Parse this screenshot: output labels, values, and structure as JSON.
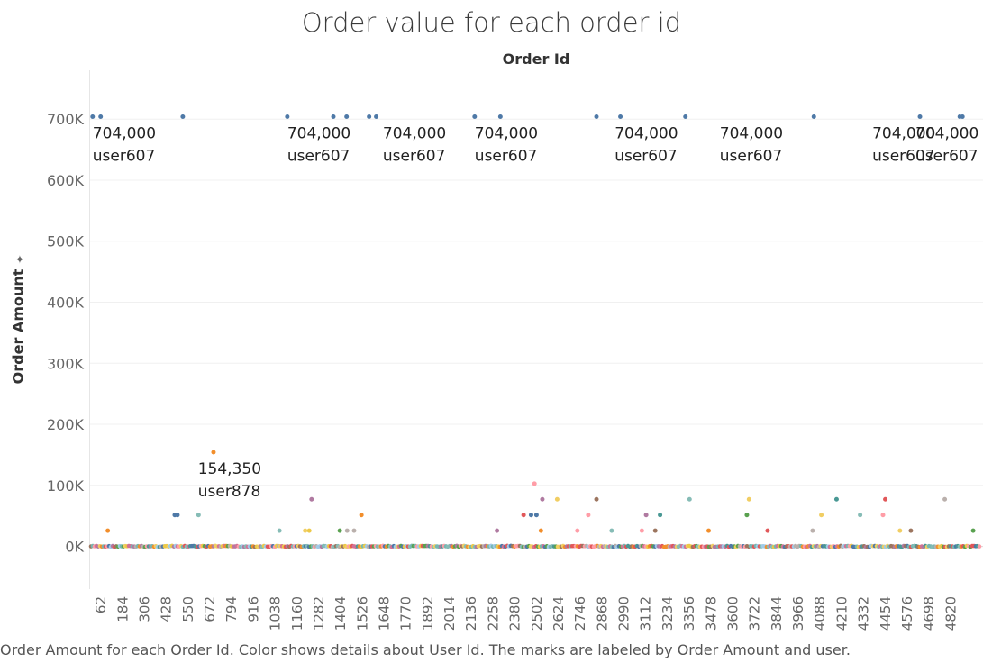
{
  "chart_data": {
    "type": "scatter",
    "title": "Order value for each order id",
    "xlabel": "Order Id",
    "ylabel": "Order Amount",
    "caption": "Order Amount for each Order Id.  Color shows details about User Id.  The marks are labeled by Order Amount and user.",
    "xlim": [
      1,
      5000
    ],
    "ylim": [
      -70000,
      780000
    ],
    "y_ticks": [
      0,
      100000,
      200000,
      300000,
      400000,
      500000,
      600000,
      700000
    ],
    "y_tick_labels": [
      "0K",
      "100K",
      "200K",
      "300K",
      "400K",
      "500K",
      "600K",
      "700K"
    ],
    "x_ticks": [
      62,
      184,
      306,
      428,
      550,
      672,
      794,
      916,
      1038,
      1160,
      1282,
      1404,
      1526,
      1648,
      1770,
      1892,
      2014,
      2136,
      2258,
      2380,
      2502,
      2624,
      2746,
      2868,
      2990,
      3112,
      3234,
      3356,
      3478,
      3600,
      3722,
      3844,
      3966,
      4088,
      4210,
      4332,
      4454,
      4576,
      4698,
      4820
    ],
    "grid": true,
    "points": [
      {
        "x": 15,
        "y": 704000,
        "color": "#4e79a7"
      },
      {
        "x": 60,
        "y": 704000,
        "color": "#4e79a7"
      },
      {
        "x": 520,
        "y": 704000,
        "color": "#4e79a7"
      },
      {
        "x": 1105,
        "y": 704000,
        "color": "#4e79a7"
      },
      {
        "x": 1363,
        "y": 704000,
        "color": "#4e79a7"
      },
      {
        "x": 1437,
        "y": 704000,
        "color": "#4e79a7"
      },
      {
        "x": 1563,
        "y": 704000,
        "color": "#4e79a7"
      },
      {
        "x": 1603,
        "y": 704000,
        "color": "#4e79a7"
      },
      {
        "x": 2154,
        "y": 704000,
        "color": "#4e79a7"
      },
      {
        "x": 2298,
        "y": 704000,
        "color": "#4e79a7"
      },
      {
        "x": 2836,
        "y": 704000,
        "color": "#4e79a7"
      },
      {
        "x": 2970,
        "y": 704000,
        "color": "#4e79a7"
      },
      {
        "x": 3334,
        "y": 704000,
        "color": "#4e79a7"
      },
      {
        "x": 4053,
        "y": 704000,
        "color": "#4e79a7"
      },
      {
        "x": 4647,
        "y": 704000,
        "color": "#4e79a7"
      },
      {
        "x": 4870,
        "y": 704000,
        "color": "#4e79a7"
      },
      {
        "x": 4885,
        "y": 704000,
        "color": "#4e79a7"
      },
      {
        "x": 692,
        "y": 154350,
        "color": "#f28e2b"
      },
      {
        "x": 2489,
        "y": 102900,
        "color": "#ff9da7"
      },
      {
        "x": 1241,
        "y": 77175,
        "color": "#b07aa1"
      },
      {
        "x": 2616,
        "y": 77175,
        "color": "#f1ce63"
      },
      {
        "x": 2836,
        "y": 77175,
        "color": "#9c755f"
      },
      {
        "x": 2533,
        "y": 77175,
        "color": "#b07aa1"
      },
      {
        "x": 3357,
        "y": 77175,
        "color": "#86bcb6"
      },
      {
        "x": 3690,
        "y": 77175,
        "color": "#f1ce63"
      },
      {
        "x": 4180,
        "y": 77175,
        "color": "#499894"
      },
      {
        "x": 4453,
        "y": 77175,
        "color": "#e15759"
      },
      {
        "x": 4786,
        "y": 77175,
        "color": "#bab0ac"
      },
      {
        "x": 475,
        "y": 51450,
        "color": "#4e79a7"
      },
      {
        "x": 490,
        "y": 51450,
        "color": "#4e79a7"
      },
      {
        "x": 608,
        "y": 51450,
        "color": "#86bcb6"
      },
      {
        "x": 1520,
        "y": 51450,
        "color": "#f28e2b"
      },
      {
        "x": 2428,
        "y": 51450,
        "color": "#e15759"
      },
      {
        "x": 2470,
        "y": 51450,
        "color": "#4e79a7"
      },
      {
        "x": 2500,
        "y": 51450,
        "color": "#4e79a7"
      },
      {
        "x": 2790,
        "y": 51450,
        "color": "#ff9da7"
      },
      {
        "x": 3114,
        "y": 51450,
        "color": "#b07aa1"
      },
      {
        "x": 3192,
        "y": 51450,
        "color": "#499894"
      },
      {
        "x": 3678,
        "y": 51450,
        "color": "#59a14f"
      },
      {
        "x": 4095,
        "y": 51450,
        "color": "#f1ce63"
      },
      {
        "x": 4312,
        "y": 51450,
        "color": "#86bcb6"
      },
      {
        "x": 4440,
        "y": 51450,
        "color": "#ff9da7"
      },
      {
        "x": 100,
        "y": 25725,
        "color": "#f28e2b"
      },
      {
        "x": 1061,
        "y": 25725,
        "color": "#86bcb6"
      },
      {
        "x": 1205,
        "y": 25725,
        "color": "#f1ce63"
      },
      {
        "x": 1228,
        "y": 25725,
        "color": "#edc948"
      },
      {
        "x": 1399,
        "y": 25725,
        "color": "#59a14f"
      },
      {
        "x": 1440,
        "y": 25725,
        "color": "#bab0ac"
      },
      {
        "x": 1479,
        "y": 25725,
        "color": "#bab0ac"
      },
      {
        "x": 2279,
        "y": 25725,
        "color": "#b07aa1"
      },
      {
        "x": 2525,
        "y": 25725,
        "color": "#f28e2b"
      },
      {
        "x": 2729,
        "y": 25725,
        "color": "#ff9da7"
      },
      {
        "x": 2921,
        "y": 25725,
        "color": "#86bcb6"
      },
      {
        "x": 3090,
        "y": 25725,
        "color": "#ff9da7"
      },
      {
        "x": 3165,
        "y": 25725,
        "color": "#9c755f"
      },
      {
        "x": 3464,
        "y": 25725,
        "color": "#f28e2b"
      },
      {
        "x": 3794,
        "y": 25725,
        "color": "#e15759"
      },
      {
        "x": 4046,
        "y": 25725,
        "color": "#bab0ac"
      },
      {
        "x": 4535,
        "y": 25725,
        "color": "#f1ce63"
      },
      {
        "x": 4596,
        "y": 25725,
        "color": "#9c755f"
      },
      {
        "x": 4945,
        "y": 25725,
        "color": "#59a14f"
      }
    ],
    "labels": [
      {
        "x": 15,
        "y": 704000,
        "amount": "704,000",
        "user": "user607"
      },
      {
        "x": 1105,
        "y": 704000,
        "amount": "704,000",
        "user": "user607"
      },
      {
        "x": 1640,
        "y": 704000,
        "amount": "704,000",
        "user": "user607"
      },
      {
        "x": 2154,
        "y": 704000,
        "amount": "704,000",
        "user": "user607"
      },
      {
        "x": 2938,
        "y": 704000,
        "amount": "704,000",
        "user": "user607"
      },
      {
        "x": 3526,
        "y": 704000,
        "amount": "704,000",
        "user": "user607"
      },
      {
        "x": 4380,
        "y": 704000,
        "amount": "704,000",
        "user": "user607"
      },
      {
        "x": 5080,
        "y": 704000,
        "amount": "704,000",
        "user": "user607"
      },
      {
        "x": 605,
        "y": 154350,
        "amount": "154,350",
        "user": "user878"
      }
    ]
  },
  "palette": [
    "#4e79a7",
    "#f28e2b",
    "#e15759",
    "#76b7b2",
    "#59a14f",
    "#edc948",
    "#b07aa1",
    "#ff9da7",
    "#9c755f",
    "#bab0ac",
    "#86bcb6",
    "#f1ce63",
    "#499894",
    "#d37295",
    "#a0cbe8"
  ]
}
